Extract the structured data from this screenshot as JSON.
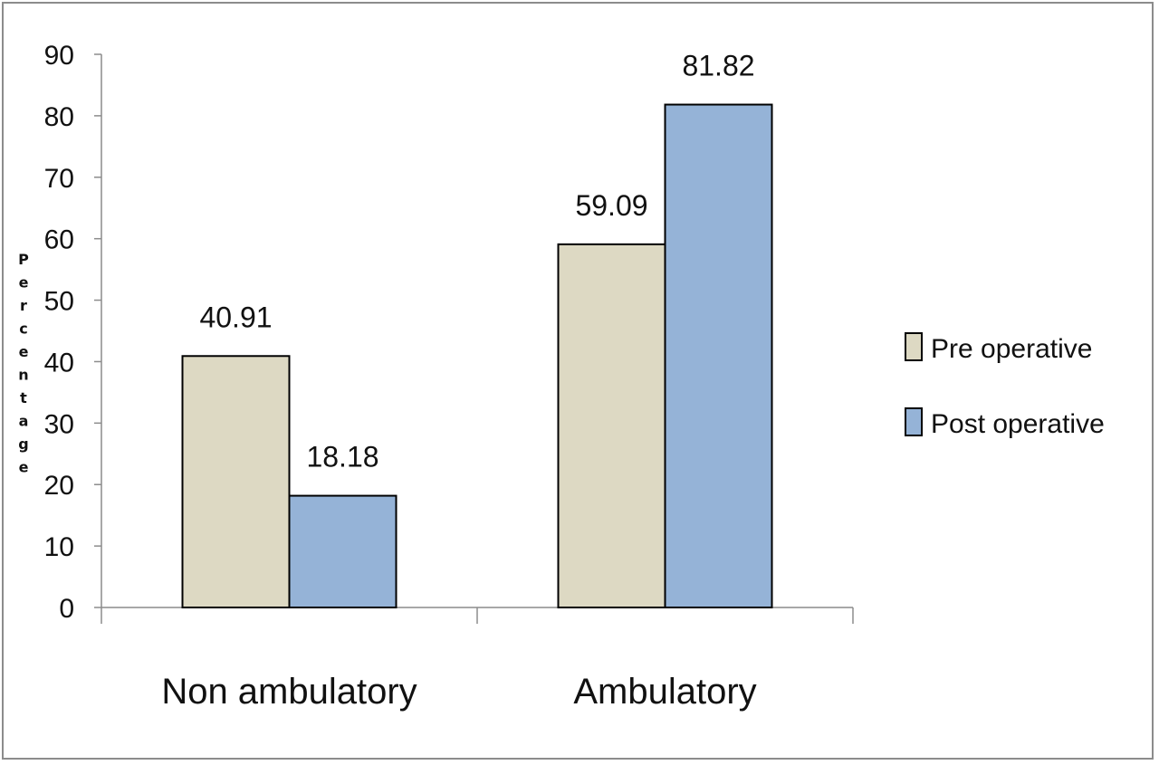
{
  "chart_data": {
    "type": "bar",
    "categories": [
      "Non ambulatory",
      "Ambulatory"
    ],
    "series": [
      {
        "name": "Pre operative",
        "values": [
          40.91,
          59.09
        ],
        "color": "#ddd9c3"
      },
      {
        "name": "Post operative",
        "values": [
          18.18,
          81.82
        ],
        "color": "#95b3d7"
      }
    ],
    "data_labels": [
      [
        "40.91",
        "59.09"
      ],
      [
        "18.18",
        "81.82"
      ]
    ],
    "title": "",
    "xlabel": "",
    "ylabel": "Percentage",
    "ylim": [
      0,
      90
    ],
    "yticks": [
      "0",
      "10",
      "20",
      "30",
      "40",
      "50",
      "60",
      "70",
      "80",
      "90"
    ],
    "grid": false,
    "legend_position": "right"
  }
}
